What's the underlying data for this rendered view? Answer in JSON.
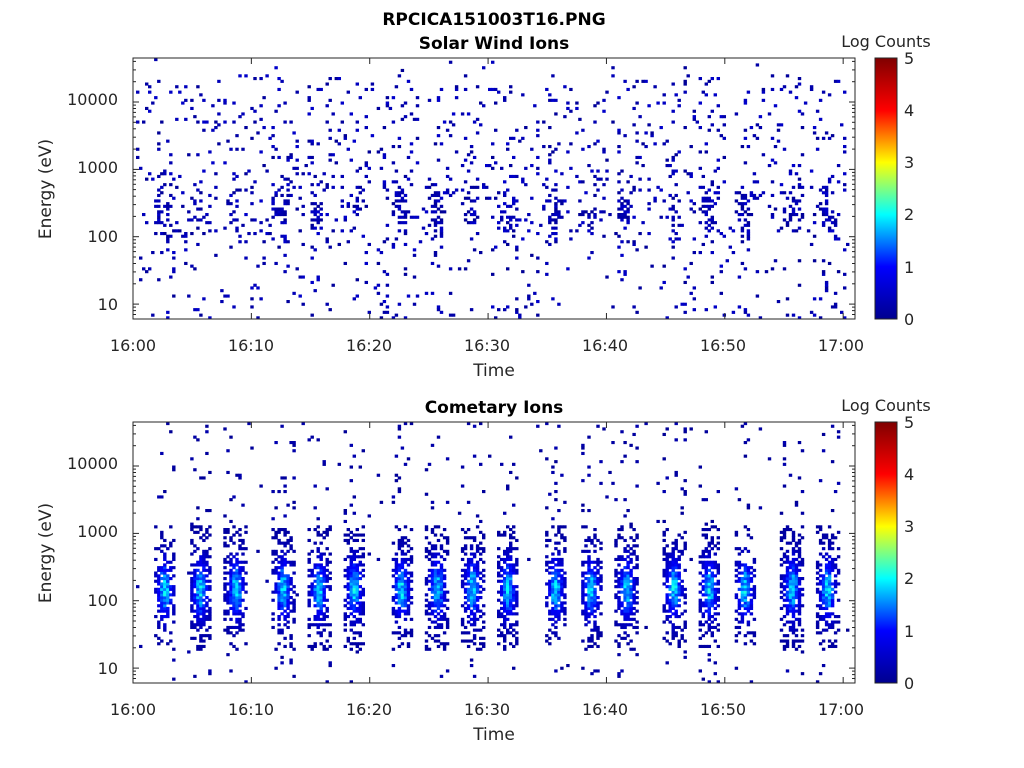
{
  "file_title": "RPCICA151003T16.PNG",
  "colormap": {
    "name": "jet",
    "stops": [
      "#00008f",
      "#0000ff",
      "#00ffff",
      "#ffff00",
      "#ff0000",
      "#800000"
    ]
  },
  "chart_data": [
    {
      "type": "heatmap",
      "title": "Solar Wind Ions",
      "xlabel": "Time",
      "ylabel": "Energy (eV)",
      "y_scale": "log",
      "ylim": [
        6,
        45000
      ],
      "xlim": [
        "16:00",
        "17:01"
      ],
      "x_ticks": [
        "16:00",
        "16:10",
        "16:20",
        "16:30",
        "16:40",
        "16:50",
        "17:00"
      ],
      "y_ticks": [
        10,
        100,
        1000,
        10000
      ],
      "y_tick_labels": [
        "10",
        "100",
        "1000",
        "10000"
      ],
      "colorbar": {
        "label": "Log Counts",
        "range": [
          0,
          5
        ],
        "ticks": [
          "0",
          "1",
          "2",
          "3",
          "4",
          "5"
        ]
      },
      "sweep_period_min": 3.3,
      "sweep_start_times": [
        "16:02",
        "16:05",
        "16:08",
        "16:12",
        "16:15",
        "16:18",
        "16:22",
        "16:25",
        "16:28",
        "16:31",
        "16:35",
        "16:38",
        "16:41",
        "16:45",
        "16:48",
        "16:51",
        "16:55",
        "16:58"
      ],
      "dominant_energy_ev": 250,
      "peak_log_counts": 0.5,
      "note_pattern": "sparse scattered low counts 10 eV to 20000 eV, clusters near 200-300 eV each sweep"
    },
    {
      "type": "heatmap",
      "title": "Cometary Ions",
      "xlabel": "Time",
      "ylabel": "Energy (eV)",
      "y_scale": "log",
      "ylim": [
        6,
        45000
      ],
      "xlim": [
        "16:00",
        "17:01"
      ],
      "x_ticks": [
        "16:00",
        "16:10",
        "16:20",
        "16:30",
        "16:40",
        "16:50",
        "17:00"
      ],
      "y_ticks": [
        10,
        100,
        1000,
        10000
      ],
      "y_tick_labels": [
        "10",
        "100",
        "1000",
        "10000"
      ],
      "colorbar": {
        "label": "Log Counts",
        "range": [
          0,
          5
        ],
        "ticks": [
          "0",
          "1",
          "2",
          "3",
          "4",
          "5"
        ]
      },
      "sweep_period_min": 3.3,
      "sweep_start_times": [
        "16:02",
        "16:05",
        "16:08",
        "16:12",
        "16:15",
        "16:18",
        "16:22",
        "16:25",
        "16:28",
        "16:31",
        "16:35",
        "16:38",
        "16:41",
        "16:45",
        "16:48",
        "16:51",
        "16:55",
        "16:58"
      ],
      "energy_range_ev": [
        30,
        700
      ],
      "peak_energy_ev": 150,
      "peak_log_counts": 1.8
    }
  ]
}
